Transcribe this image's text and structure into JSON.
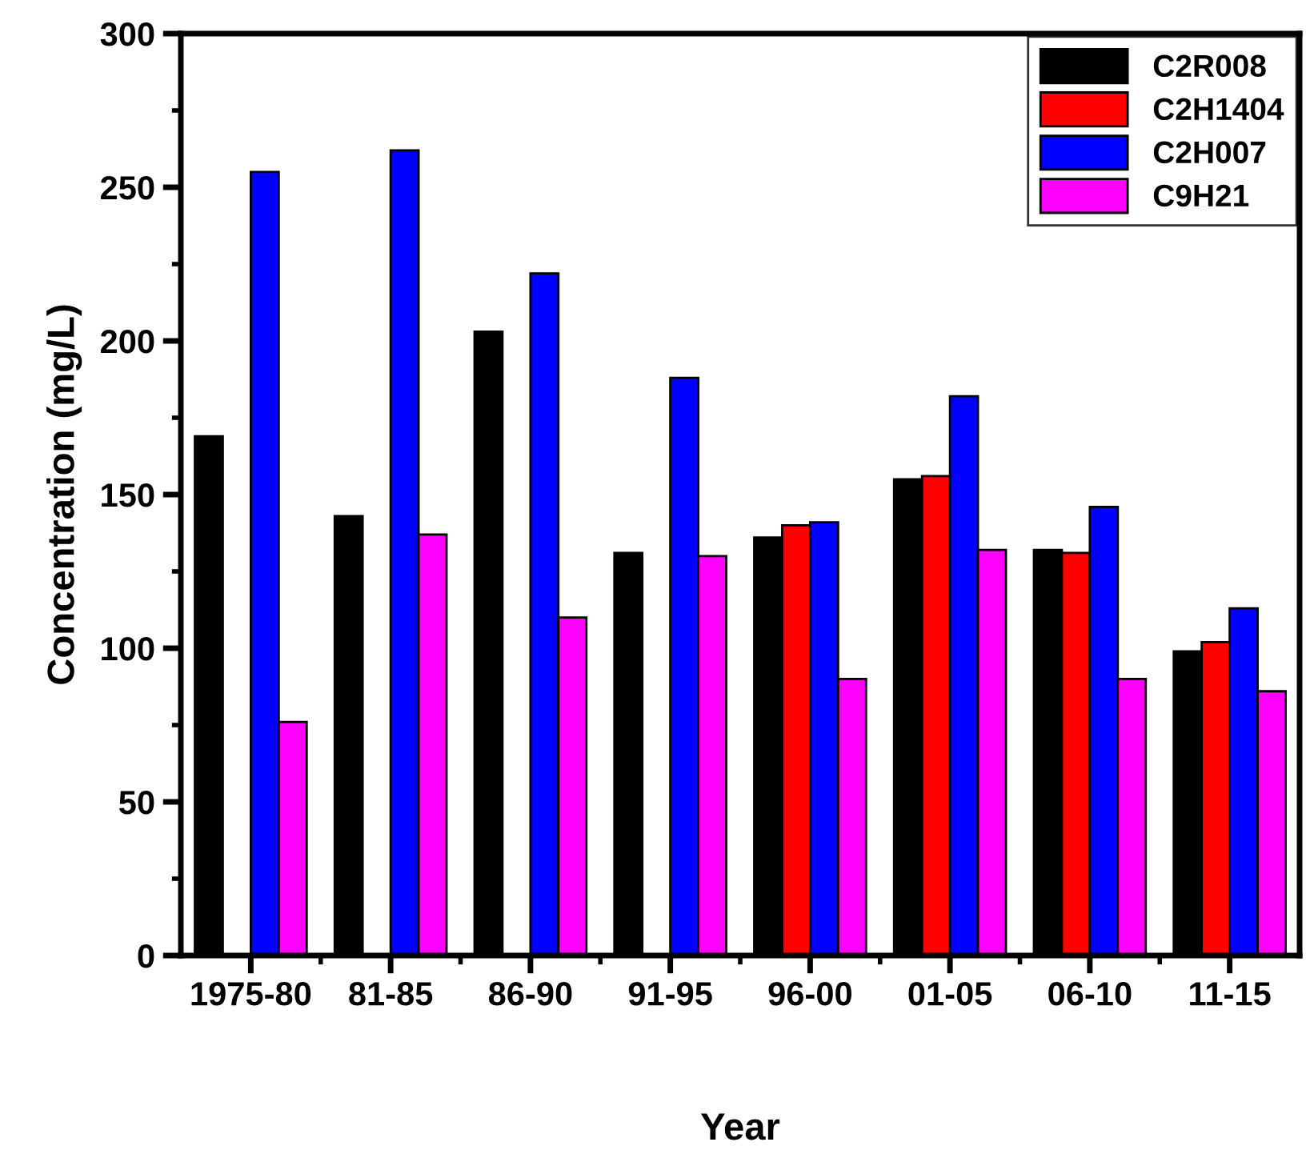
{
  "chart_data": {
    "type": "bar",
    "xlabel": "Year",
    "ylabel": "Concentration (mg/L)",
    "categories": [
      "1975-80",
      "81-85",
      "86-90",
      "91-95",
      "96-00",
      "01-05",
      "06-10",
      "11-15"
    ],
    "series": [
      {
        "name": "C2R008",
        "color": "#000000",
        "values": [
          169,
          143,
          203,
          131,
          136,
          155,
          132,
          99
        ]
      },
      {
        "name": "C2H1404",
        "color": "#ff0000",
        "values": [
          null,
          null,
          null,
          null,
          140,
          156,
          131,
          102
        ]
      },
      {
        "name": "C2H007",
        "color": "#0000ff",
        "values": [
          255,
          262,
          222,
          188,
          141,
          182,
          146,
          113
        ]
      },
      {
        "name": "C9H21",
        "color": "#ff00ff",
        "values": [
          76,
          137,
          110,
          130,
          90,
          132,
          90,
          86
        ]
      }
    ],
    "ylim": [
      0,
      300
    ],
    "yticks": [
      0,
      50,
      100,
      150,
      200,
      250,
      300
    ],
    "grid": false,
    "legend": "top right"
  }
}
